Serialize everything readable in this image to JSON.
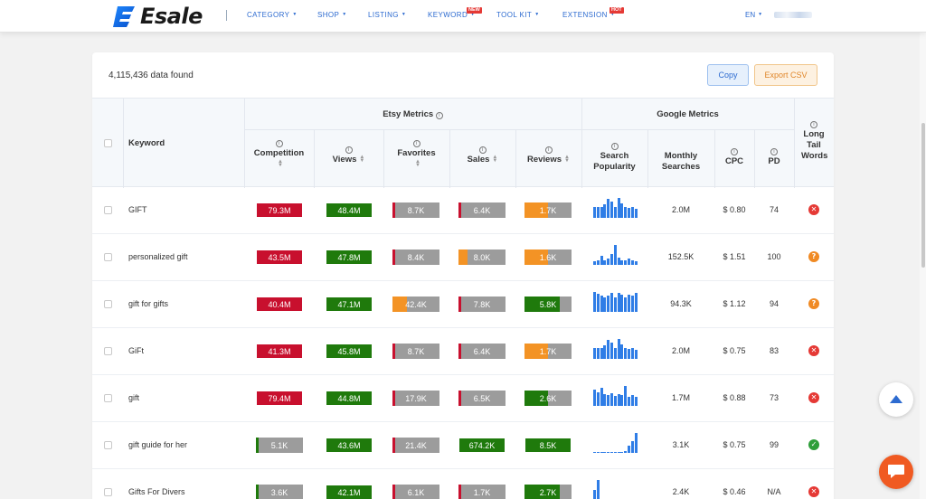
{
  "brand": {
    "name": "Esale",
    "accent": "#2d6bd0"
  },
  "nav": {
    "items": [
      {
        "label": "CATEGORY"
      },
      {
        "label": "SHOP"
      },
      {
        "label": "LISTING"
      },
      {
        "label": "KEYWORD",
        "badge": "NEW"
      },
      {
        "label": "TOOL KIT"
      },
      {
        "label": "EXTENSION",
        "badge": "HOT"
      }
    ],
    "lang": "EN"
  },
  "toolbar": {
    "found_text": "4,115,436 data found",
    "copy_label": "Copy",
    "export_label": "Export CSV"
  },
  "table": {
    "group_headers": {
      "etsy": "Etsy Metrics",
      "google": "Google Metrics"
    },
    "headers": {
      "keyword": "Keyword",
      "competition": "Competition",
      "views": "Views",
      "favorites": "Favorites",
      "sales": "Sales",
      "reviews": "Reviews",
      "search_popularity": "Search Popularity",
      "monthly_searches": "Monthly Searches",
      "cpc": "CPC",
      "pd": "PD",
      "long_tail": "Long Tail Words"
    },
    "colors": {
      "red": "#c8102e",
      "green": "#1f7a0c",
      "orange": "#f39325",
      "gray": "#9c9c9c"
    },
    "rows": [
      {
        "keyword": "GIFT",
        "competition": {
          "text": "79.3M",
          "color": "red",
          "level": 1
        },
        "views": {
          "text": "48.4M",
          "color": "green",
          "level": 1
        },
        "favorites": {
          "text": "8.7K",
          "color": "red",
          "level": 0.06
        },
        "sales": {
          "text": "6.4K",
          "color": "red",
          "level": 0.06
        },
        "reviews": {
          "text": "1.7K",
          "color": "orange",
          "level": 0.5
        },
        "spark": [
          0.55,
          0.55,
          0.55,
          0.7,
          0.95,
          0.8,
          0.55,
          1,
          0.75,
          0.55,
          0.5,
          0.55,
          0.45
        ],
        "monthly": "2.0M",
        "cpc": "$ 0.80",
        "pd": "74",
        "long_tail": "no"
      },
      {
        "keyword": "personalized gift",
        "competition": {
          "text": "43.5M",
          "color": "red",
          "level": 1
        },
        "views": {
          "text": "47.8M",
          "color": "green",
          "level": 1
        },
        "favorites": {
          "text": "8.4K",
          "color": "red",
          "level": 0.06
        },
        "sales": {
          "text": "8.0K",
          "color": "orange",
          "level": 0.2
        },
        "reviews": {
          "text": "1.6K",
          "color": "orange",
          "level": 0.5
        },
        "spark": [
          0.2,
          0.25,
          0.45,
          0.25,
          0.3,
          0.55,
          1,
          0.35,
          0.25,
          0.25,
          0.3,
          0.25,
          0.2
        ],
        "monthly": "152.5K",
        "cpc": "$ 1.51",
        "pd": "100",
        "long_tail": "maybe"
      },
      {
        "keyword": "gift for gifts",
        "competition": {
          "text": "40.4M",
          "color": "red",
          "level": 1
        },
        "views": {
          "text": "47.1M",
          "color": "green",
          "level": 1
        },
        "favorites": {
          "text": "42.4K",
          "color": "orange",
          "level": 0.3
        },
        "sales": {
          "text": "7.8K",
          "color": "red",
          "level": 0.06
        },
        "reviews": {
          "text": "5.8K",
          "color": "green",
          "level": 0.75
        },
        "spark": [
          1,
          0.9,
          0.8,
          0.75,
          0.8,
          0.95,
          0.75,
          0.95,
          0.85,
          0.75,
          0.85,
          0.8,
          0.95
        ],
        "monthly": "94.3K",
        "cpc": "$ 1.12",
        "pd": "94",
        "long_tail": "maybe"
      },
      {
        "keyword": "GiFt",
        "competition": {
          "text": "41.3M",
          "color": "red",
          "level": 1
        },
        "views": {
          "text": "45.8M",
          "color": "green",
          "level": 1
        },
        "favorites": {
          "text": "8.7K",
          "color": "red",
          "level": 0.06
        },
        "sales": {
          "text": "6.4K",
          "color": "red",
          "level": 0.06
        },
        "reviews": {
          "text": "1.7K",
          "color": "orange",
          "level": 0.5
        },
        "spark": [
          0.55,
          0.55,
          0.55,
          0.7,
          0.95,
          0.8,
          0.55,
          1,
          0.75,
          0.55,
          0.5,
          0.55,
          0.45
        ],
        "monthly": "2.0M",
        "cpc": "$ 0.75",
        "pd": "83",
        "long_tail": "no"
      },
      {
        "keyword": "gift",
        "competition": {
          "text": "79.4M",
          "color": "red",
          "level": 1
        },
        "views": {
          "text": "44.8M",
          "color": "green",
          "level": 1
        },
        "favorites": {
          "text": "17.9K",
          "color": "red",
          "level": 0.06
        },
        "sales": {
          "text": "6.5K",
          "color": "red",
          "level": 0.06
        },
        "reviews": {
          "text": "2.6K",
          "color": "green",
          "level": 0.5
        },
        "spark": [
          0.8,
          0.7,
          0.9,
          0.6,
          0.55,
          0.65,
          0.5,
          0.6,
          0.55,
          1,
          0.45,
          0.55,
          0.45
        ],
        "monthly": "1.7M",
        "cpc": "$ 0.88",
        "pd": "73",
        "long_tail": "no"
      },
      {
        "keyword": "gift guide for her",
        "competition": {
          "text": "5.1K",
          "color": "green",
          "level": 0.06
        },
        "views": {
          "text": "43.6M",
          "color": "green",
          "level": 1
        },
        "favorites": {
          "text": "21.4K",
          "color": "red",
          "level": 0.06
        },
        "sales": {
          "text": "674.2K",
          "color": "green",
          "level": 1
        },
        "reviews": {
          "text": "8.5K",
          "color": "green",
          "level": 1
        },
        "spark": [
          0.05,
          0.05,
          0.05,
          0.05,
          0.05,
          0.05,
          0.05,
          0.05,
          0.05,
          0.1,
          0.35,
          0.6,
          1
        ],
        "monthly": "3.1K",
        "cpc": "$ 0.75",
        "pd": "99",
        "long_tail": "yes"
      },
      {
        "keyword": "Gifts For Divers",
        "competition": {
          "text": "3.6K",
          "color": "green",
          "level": 0.06
        },
        "views": {
          "text": "42.1M",
          "color": "green",
          "level": 1
        },
        "favorites": {
          "text": "6.1K",
          "color": "red",
          "level": 0.06
        },
        "sales": {
          "text": "1.7K",
          "color": "red",
          "level": 0.06
        },
        "reviews": {
          "text": "2.7K",
          "color": "green",
          "level": 0.75
        },
        "spark": [
          0.5,
          1,
          0,
          0,
          0,
          0,
          0,
          0,
          0,
          0,
          0,
          0,
          0
        ],
        "monthly": "2.4K",
        "cpc": "$ 0.46",
        "pd": "N/A",
        "long_tail": "no"
      }
    ]
  },
  "status_icons": {
    "no": {
      "name": "x-circle-icon",
      "glyph": "✕",
      "color": "#e53935"
    },
    "maybe": {
      "name": "question-circle-icon",
      "glyph": "?",
      "color": "#f08a24"
    },
    "yes": {
      "name": "check-circle-icon",
      "glyph": "✓",
      "color": "#2e9e3a"
    }
  }
}
